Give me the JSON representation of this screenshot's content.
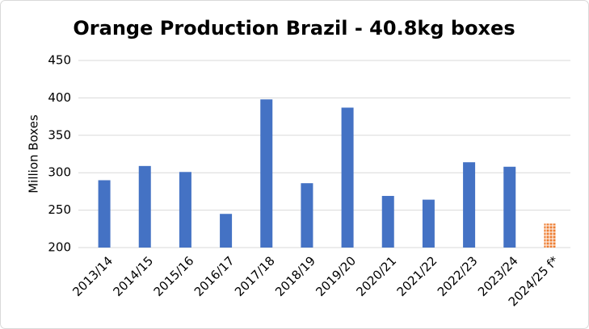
{
  "chart_data": {
    "type": "bar",
    "title": "Orange Production Brazil - 40.8kg boxes",
    "y_label": "Million Boxes",
    "categories": [
      "2013/14",
      "2014/15",
      "2015/16",
      "2016/17",
      "2017/18",
      "2018/19",
      "2019/20",
      "2020/21",
      "2021/22",
      "2022/23",
      "2023/24",
      "2024/25 f*"
    ],
    "values": [
      290,
      309,
      301,
      245,
      398,
      286,
      387,
      269,
      264,
      314,
      308,
      232
    ],
    "colors": [
      "#4472c4",
      "#4472c4",
      "#4472c4",
      "#4472c4",
      "#4472c4",
      "#4472c4",
      "#4472c4",
      "#4472c4",
      "#4472c4",
      "#4472c4",
      "#4472c4",
      "#ed7d31"
    ],
    "ylim": [
      200,
      450
    ],
    "yticks": [
      200,
      250,
      300,
      350,
      400,
      450
    ],
    "grid": true
  }
}
